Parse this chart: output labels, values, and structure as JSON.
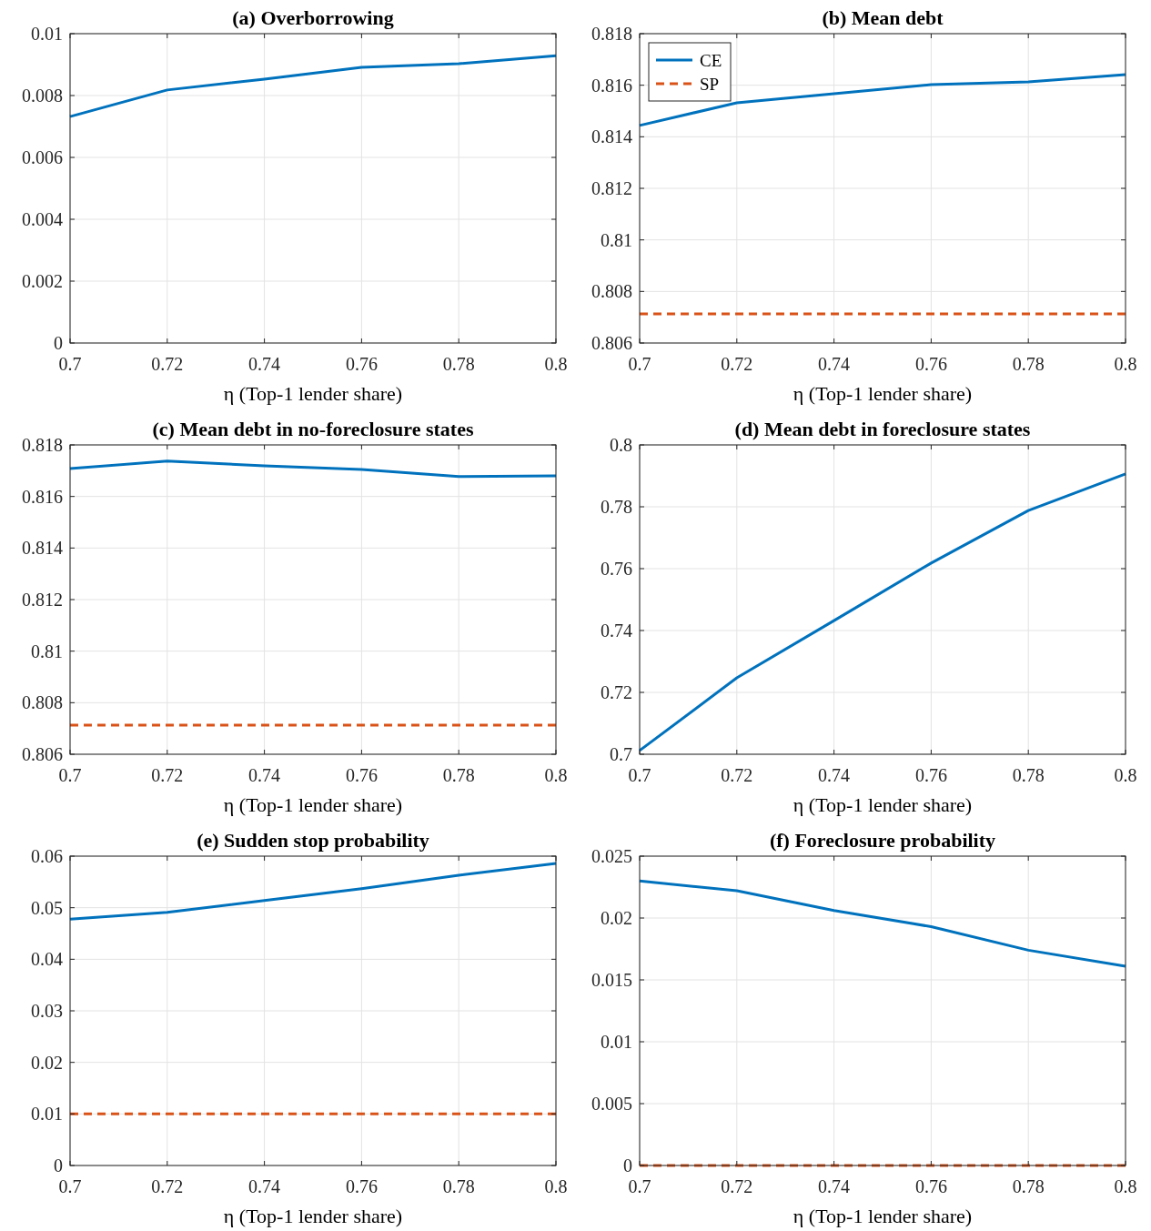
{
  "chart_data": [
    {
      "type": "line",
      "title": "(a) Overborrowing",
      "xlabel": "η  (Top-1 lender share)",
      "x": [
        0.7,
        0.72,
        0.74,
        0.76,
        0.78,
        0.8
      ],
      "xlim": [
        0.7,
        0.8
      ],
      "xticks": [
        0.7,
        0.72,
        0.74,
        0.76,
        0.78,
        0.8
      ],
      "ylim": [
        0,
        0.01
      ],
      "yticks": [
        0,
        0.002,
        0.004,
        0.006,
        0.008,
        0.01
      ],
      "grid": true,
      "series": [
        {
          "color": "#0072bd",
          "values": [
            0.00732,
            0.00818,
            0.00853,
            0.00891,
            0.00903,
            0.00929
          ]
        }
      ]
    },
    {
      "type": "line",
      "title": "(b) Mean debt",
      "xlabel": "η  (Top-1 lender share)",
      "x": [
        0.7,
        0.72,
        0.74,
        0.76,
        0.78,
        0.8
      ],
      "xlim": [
        0.7,
        0.8
      ],
      "xticks": [
        0.7,
        0.72,
        0.74,
        0.76,
        0.78,
        0.8
      ],
      "ylim": [
        0.806,
        0.818
      ],
      "yticks": [
        0.806,
        0.808,
        0.81,
        0.812,
        0.814,
        0.816,
        0.818
      ],
      "grid": true,
      "legend": "top left",
      "series": [
        {
          "name": "CE",
          "color": "#0072bd",
          "values": [
            0.81444,
            0.81532,
            0.81567,
            0.81602,
            0.81613,
            0.81641
          ]
        },
        {
          "name": "SP",
          "color": "#d95319",
          "line_style": "dashed",
          "values": [
            0.80713,
            0.80713,
            0.80713,
            0.80713,
            0.80713,
            0.80713
          ]
        }
      ]
    },
    {
      "type": "line",
      "title": "(c) Mean debt in no-foreclosure states",
      "xlabel": "η  (Top-1 lender share)",
      "x": [
        0.7,
        0.72,
        0.74,
        0.76,
        0.78,
        0.8
      ],
      "xlim": [
        0.7,
        0.8
      ],
      "xticks": [
        0.7,
        0.72,
        0.74,
        0.76,
        0.78,
        0.8
      ],
      "ylim": [
        0.806,
        0.818
      ],
      "yticks": [
        0.806,
        0.808,
        0.81,
        0.812,
        0.814,
        0.816,
        0.818
      ],
      "grid": true,
      "series": [
        {
          "color": "#0072bd",
          "values": [
            0.81708,
            0.81737,
            0.81719,
            0.81705,
            0.81677,
            0.8168
          ]
        },
        {
          "color": "#d95319",
          "line_style": "dashed",
          "values": [
            0.80713,
            0.80713,
            0.80713,
            0.80713,
            0.80713,
            0.80713
          ]
        }
      ]
    },
    {
      "type": "line",
      "title": "(d) Mean debt in foreclosure states",
      "xlabel": "η  (Top-1 lender share)",
      "x": [
        0.7,
        0.72,
        0.74,
        0.76,
        0.78,
        0.8
      ],
      "xlim": [
        0.7,
        0.8
      ],
      "xticks": [
        0.7,
        0.72,
        0.74,
        0.76,
        0.78,
        0.8
      ],
      "ylim": [
        0.7,
        0.8
      ],
      "yticks": [
        0.7,
        0.72,
        0.74,
        0.76,
        0.78,
        0.8
      ],
      "grid": true,
      "series": [
        {
          "color": "#0072bd",
          "values": [
            0.7012,
            0.7247,
            0.7432,
            0.7618,
            0.7788,
            0.7906
          ]
        }
      ]
    },
    {
      "type": "line",
      "title": "(e) Sudden stop probability",
      "xlabel": "η  (Top-1 lender share)",
      "x": [
        0.7,
        0.72,
        0.74,
        0.76,
        0.78,
        0.8
      ],
      "xlim": [
        0.7,
        0.8
      ],
      "xticks": [
        0.7,
        0.72,
        0.74,
        0.76,
        0.78,
        0.8
      ],
      "ylim": [
        0,
        0.06
      ],
      "yticks": [
        0,
        0.01,
        0.02,
        0.03,
        0.04,
        0.05,
        0.06
      ],
      "grid": true,
      "series": [
        {
          "color": "#0072bd",
          "values": [
            0.0478,
            0.0491,
            0.0514,
            0.0537,
            0.0563,
            0.0586
          ]
        },
        {
          "color": "#d95319",
          "line_style": "dashed",
          "values": [
            0.01,
            0.01,
            0.01,
            0.01,
            0.01,
            0.01
          ]
        }
      ]
    },
    {
      "type": "line",
      "title": "(f) Foreclosure probability",
      "xlabel": "η  (Top-1 lender share)",
      "x": [
        0.7,
        0.72,
        0.74,
        0.76,
        0.78,
        0.8
      ],
      "xlim": [
        0.7,
        0.8
      ],
      "xticks": [
        0.7,
        0.72,
        0.74,
        0.76,
        0.78,
        0.8
      ],
      "ylim": [
        0,
        0.025
      ],
      "yticks": [
        0,
        0.005,
        0.01,
        0.015,
        0.02,
        0.025
      ],
      "grid": true,
      "series": [
        {
          "color": "#0072bd",
          "values": [
            0.023,
            0.0222,
            0.0206,
            0.0193,
            0.0174,
            0.0161
          ]
        },
        {
          "color": "#d95319",
          "line_style": "dashed",
          "values": [
            0,
            0,
            0,
            0,
            0,
            0
          ]
        }
      ]
    }
  ]
}
